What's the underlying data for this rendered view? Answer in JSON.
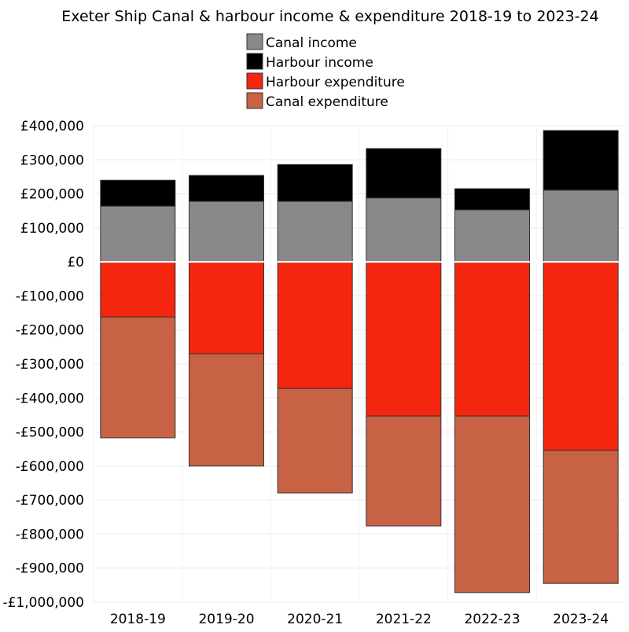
{
  "chart_data": {
    "type": "bar",
    "stacked": true,
    "title": "Exeter Ship Canal & harbour income & expenditure 2018-19 to 2023-24",
    "xlabel": "",
    "ylabel": "",
    "ylim": [
      -1000000,
      400000
    ],
    "yticks": [
      400000,
      300000,
      200000,
      100000,
      0,
      -100000,
      -200000,
      -300000,
      -400000,
      -500000,
      -600000,
      -700000,
      -800000,
      -900000,
      -1000000
    ],
    "ytick_labels": [
      "£400,000",
      "£300,000",
      "£200,000",
      "£100,000",
      "£0",
      "-£100,000",
      "-£200,000",
      "-£300,000",
      "-£400,000",
      "-£500,000",
      "-£600,000",
      "-£700,000",
      "-£800,000",
      "-£900,000",
      "-£1,000,000"
    ],
    "grid": true,
    "legend_placement": "top-center",
    "categories": [
      "2018-19",
      "2019-20",
      "2020-21",
      "2021-22",
      "2022-23",
      "2023-24"
    ],
    "series": [
      {
        "name": "Canal income",
        "color": "#8a888a",
        "values": [
          164000,
          178000,
          178000,
          188000,
          153000,
          211000
        ]
      },
      {
        "name": "Harbour income",
        "color": "#000000",
        "values": [
          76000,
          76000,
          108000,
          145000,
          62000,
          175000
        ]
      },
      {
        "name": "Harbour expenditure",
        "color": "#f5260e",
        "values": [
          -162000,
          -270000,
          -372000,
          -453000,
          -453000,
          -554000
        ]
      },
      {
        "name": "Canal expenditure",
        "color": "#c86244",
        "values": [
          -355000,
          -330000,
          -307000,
          -323000,
          -519000,
          -391000
        ]
      }
    ]
  }
}
